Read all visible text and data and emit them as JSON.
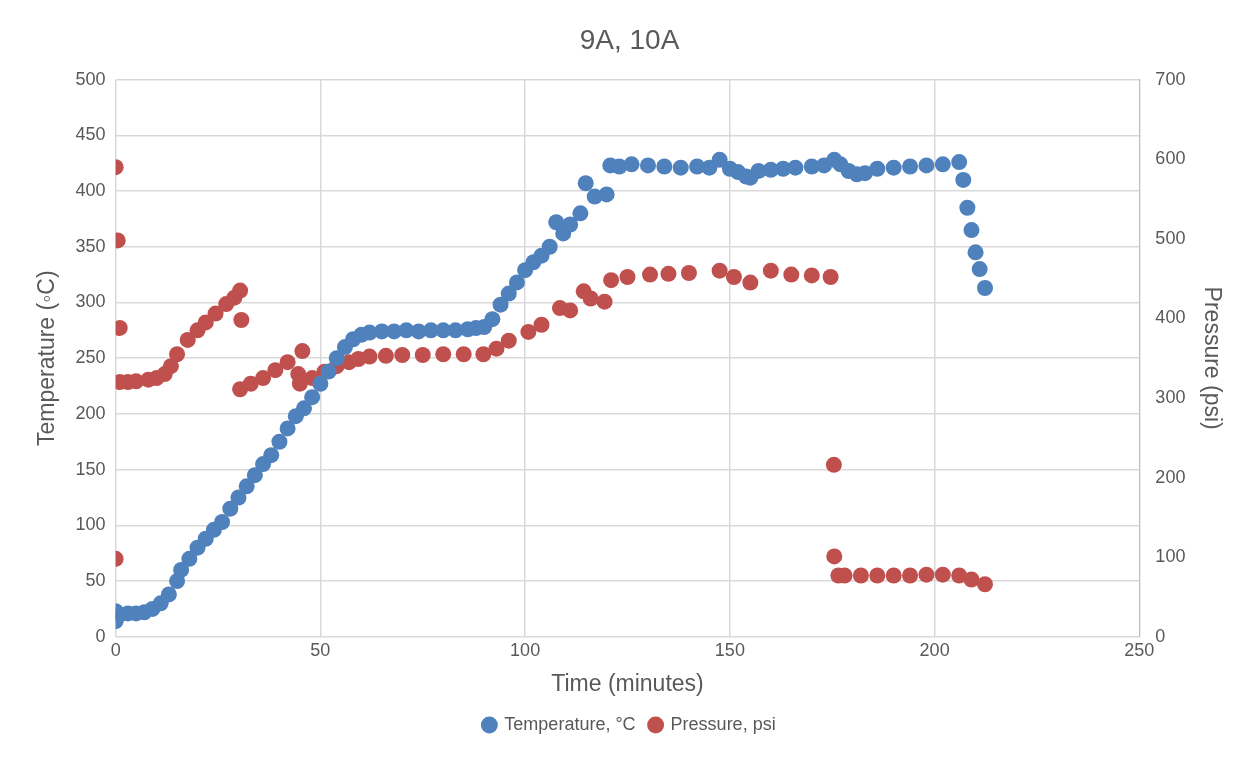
{
  "chart_data": {
    "type": "scatter",
    "title": "9A, 10A",
    "xlabel": "Time (minutes)",
    "ylabel": "Temperature (◦C)",
    "y2label": "Pressure (psi)",
    "xlim": [
      0,
      250
    ],
    "xticks": [
      0,
      50,
      100,
      150,
      200,
      250
    ],
    "ylim": [
      0,
      500
    ],
    "yticks": [
      0,
      50,
      100,
      150,
      200,
      250,
      300,
      350,
      400,
      450,
      500
    ],
    "y2lim": [
      0,
      700
    ],
    "y2ticks": [
      0,
      100,
      200,
      300,
      400,
      500,
      600,
      700
    ],
    "grid": true,
    "legend": "bottom",
    "marker": "circle",
    "series": [
      {
        "name": "Temperature, °C",
        "color": "#4f81bd",
        "x": [
          0,
          0,
          1,
          3,
          5,
          7,
          9,
          11,
          13,
          15,
          16,
          18,
          20,
          22,
          24,
          26,
          28,
          30,
          32,
          34,
          36,
          38,
          40,
          42,
          44,
          46,
          48,
          50,
          52,
          54,
          56,
          58,
          60,
          62,
          65,
          68,
          71,
          74,
          77,
          80,
          83,
          86,
          88,
          90,
          92,
          94,
          96,
          98,
          100,
          102,
          104,
          106,
          107.6,
          109.3,
          111,
          113.5,
          114.8,
          117,
          119.9,
          120.8,
          123,
          126,
          130,
          134,
          138,
          142,
          145,
          147.5,
          150,
          152,
          154,
          155,
          157,
          160,
          163,
          166,
          170,
          173,
          175.5,
          177,
          179,
          181,
          183,
          186,
          190,
          194,
          198,
          202,
          206,
          207,
          208,
          209,
          210,
          211,
          212.3
        ],
        "values": [
          23,
          14,
          20,
          21,
          21,
          22,
          25,
          30,
          38,
          50,
          60,
          70,
          80,
          88,
          96,
          103,
          115,
          125,
          135,
          145,
          155,
          163,
          175,
          187,
          198,
          205,
          215,
          227,
          238,
          250,
          260,
          267,
          271,
          273,
          274,
          274,
          275,
          274,
          275,
          275,
          275,
          276,
          277,
          278,
          285,
          298,
          308,
          318,
          329,
          336,
          342,
          350,
          372,
          362,
          370,
          380,
          407,
          395,
          397,
          423,
          422,
          424,
          423,
          422,
          421,
          422,
          421,
          428,
          420,
          417,
          413,
          412,
          418,
          419,
          420,
          421,
          422,
          423,
          428,
          424,
          418,
          415,
          416,
          420,
          421,
          422,
          423,
          424,
          426,
          410,
          385,
          365,
          345,
          330,
          313
        ]
      },
      {
        "name": "Pressure, psi",
        "color": "#c0504d",
        "axis": "y2",
        "x": [
          0,
          0,
          0.5,
          1,
          1,
          3,
          5,
          8,
          10,
          12,
          13.5,
          15,
          17.6,
          20,
          22,
          24.4,
          27,
          29,
          30.4,
          30.7,
          30.4,
          33,
          36,
          39,
          42,
          45.6,
          44.6,
          45,
          48,
          51,
          54,
          57,
          59.3,
          62,
          66,
          70,
          75,
          80,
          85,
          89.8,
          93,
          96,
          100.8,
          104,
          108.5,
          111,
          114.3,
          116,
          119.4,
          121,
          125,
          130.5,
          135,
          140,
          147.5,
          151,
          155,
          160,
          165,
          170,
          174.6,
          175.4,
          175.5,
          176.5,
          178,
          182,
          186,
          190,
          194,
          198,
          202,
          206,
          209,
          212.3
        ],
        "values": [
          590,
          98,
          498,
          388,
          320,
          320,
          321,
          323,
          325,
          330,
          340,
          355,
          373,
          385,
          395,
          406,
          418,
          426,
          435,
          398,
          311,
          318,
          325,
          335,
          345,
          359,
          330,
          318,
          325,
          333,
          340,
          345,
          349,
          352,
          353,
          354,
          354,
          355,
          355,
          355,
          362,
          372,
          383,
          392,
          413,
          410,
          434,
          425,
          421,
          448,
          452,
          455,
          456,
          457,
          460,
          452,
          445,
          460,
          455,
          454,
          452,
          216,
          101,
          77,
          77,
          77,
          77,
          77,
          77,
          78,
          78,
          77,
          72,
          66
        ]
      }
    ]
  }
}
